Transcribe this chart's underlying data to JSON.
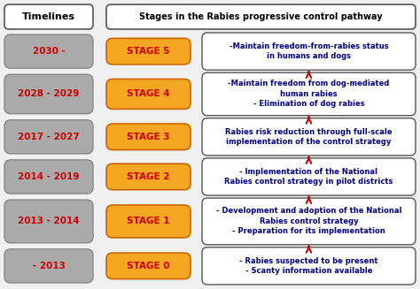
{
  "title": "Stages in the Rabies progressive control pathway",
  "left_header": "Timelines",
  "stages": [
    {
      "timeline": "2030 -",
      "stage": "STAGE 5",
      "description": "-Maintain freedom-from-rabies status\nin humans and dogs",
      "row": 0
    },
    {
      "timeline": "2028 - 2029",
      "stage": "STAGE 4",
      "description": "-Maintain freedom from dog-mediated\nhuman rabies\n- Elimination of dog rabies",
      "row": 1
    },
    {
      "timeline": "2017 - 2027",
      "stage": "STAGE 3",
      "description": "Rabies risk reduction through full-scale\nimplementation of the control strategy",
      "row": 2
    },
    {
      "timeline": "2014 - 2019",
      "stage": "STAGE 2",
      "description": "- Implementation of the National\nRabies control strategy in pilot districts",
      "row": 3
    },
    {
      "timeline": "2013 - 2014",
      "stage": "STAGE 1",
      "description": "- Development and adoption of the National\nRabies control strategy\n- Preparation for its implementation",
      "row": 4
    },
    {
      "timeline": "- 2013",
      "stage": "STAGE 0",
      "description": "- Rabies suspected to be present\n- Scanty information available",
      "row": 5
    }
  ],
  "timeline_bg": "#aaaaaa",
  "stage_bg": "#f5a623",
  "desc_bg": "#ffffff",
  "timeline_text_color": "#cc0000",
  "stage_text_color": "#cc0000",
  "desc_text_color": "#00008B",
  "arrow_color": "#cc0000",
  "header_bg": "#ffffff",
  "border_color": "#555555",
  "stage_border": "#cc6600",
  "bg_color": "#f0f0f0"
}
